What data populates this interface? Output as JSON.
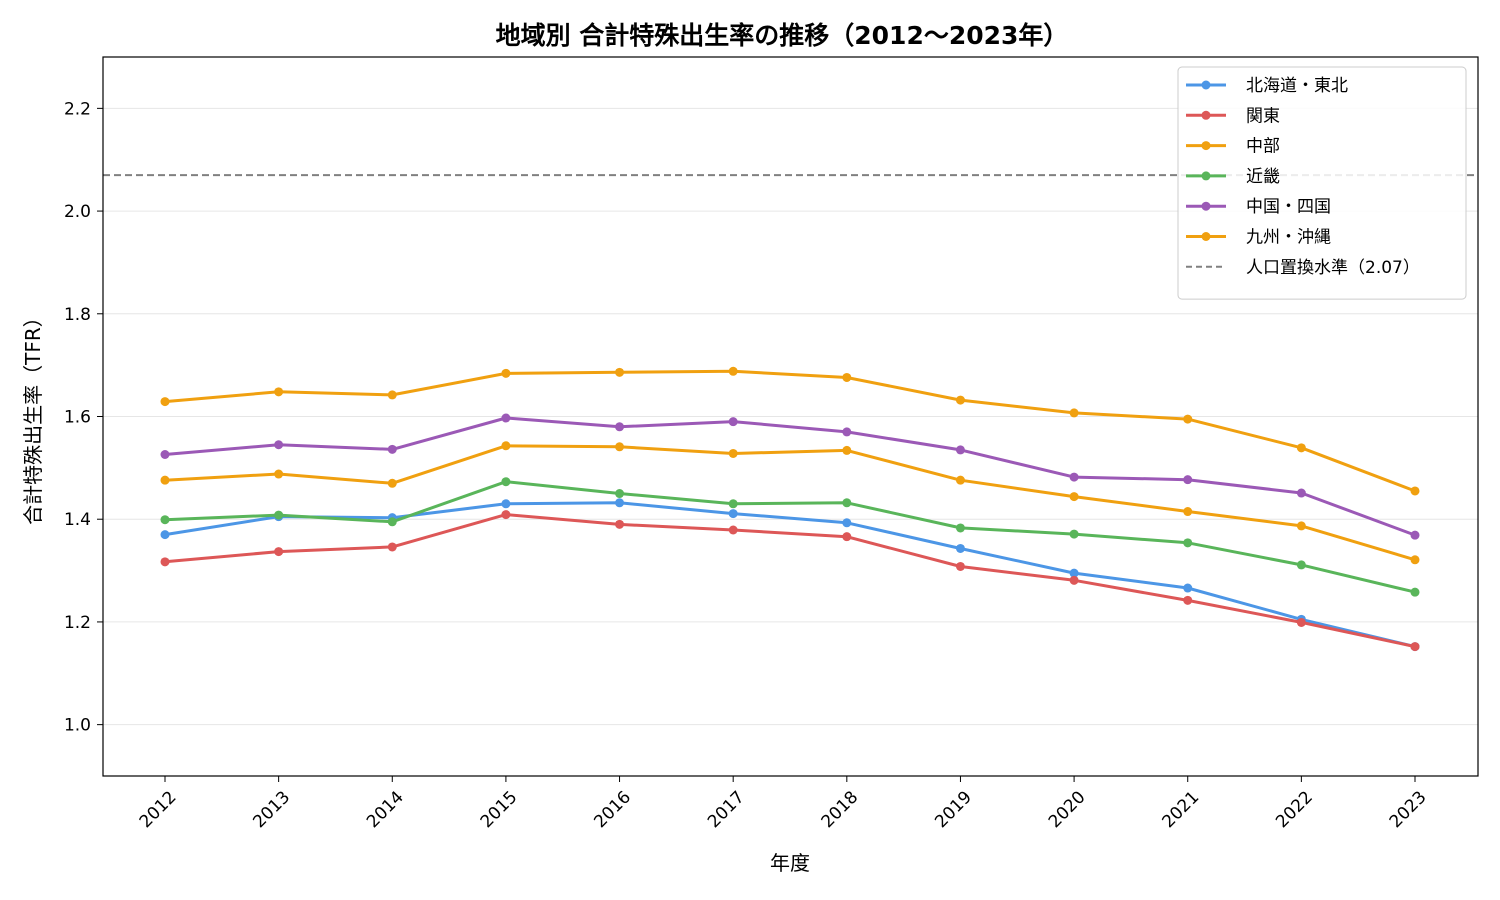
{
  "chart_data": {
    "type": "line",
    "title": "地域別 合計特殊出生率の推移（2012〜2023年）",
    "xlabel": "年度",
    "ylabel": "合計特殊出生率（TFR）",
    "ylim": [
      0.9,
      2.3
    ],
    "yticks": [
      "1.0",
      "1.2",
      "1.4",
      "1.6",
      "1.8",
      "2.0",
      "2.2"
    ],
    "x": [
      "2012",
      "2013",
      "2014",
      "2015",
      "2016",
      "2017",
      "2018",
      "2019",
      "2020",
      "2021",
      "2022",
      "2023"
    ],
    "grid": "horizontal",
    "legend_position": "top-right",
    "series": [
      {
        "name": "北海道・東北",
        "color": "#4c96e6",
        "values": [
          1.37,
          1.405,
          1.403,
          1.43,
          1.432,
          1.411,
          1.393,
          1.343,
          1.295,
          1.266,
          1.205,
          1.152
        ]
      },
      {
        "name": "関東",
        "color": "#dd5757",
        "values": [
          1.317,
          1.337,
          1.346,
          1.409,
          1.39,
          1.379,
          1.366,
          1.308,
          1.281,
          1.242,
          1.199,
          1.152
        ]
      },
      {
        "name": "中部",
        "color": "#f0a010",
        "values": [
          1.476,
          1.488,
          1.47,
          1.543,
          1.541,
          1.528,
          1.534,
          1.476,
          1.444,
          1.415,
          1.387,
          1.321
        ]
      },
      {
        "name": "近畿",
        "color": "#59b55a",
        "values": [
          1.399,
          1.408,
          1.395,
          1.473,
          1.45,
          1.43,
          1.432,
          1.383,
          1.371,
          1.354,
          1.311,
          1.258
        ]
      },
      {
        "name": "中国・四国",
        "color": "#9b59b6",
        "values": [
          1.526,
          1.545,
          1.536,
          1.597,
          1.58,
          1.59,
          1.57,
          1.535,
          1.482,
          1.477,
          1.451,
          1.369
        ]
      },
      {
        "name": "九州・沖縄",
        "color": "#f0a010",
        "values": [
          1.629,
          1.648,
          1.642,
          1.684,
          1.686,
          1.688,
          1.676,
          1.632,
          1.607,
          1.595,
          1.539,
          1.455
        ]
      }
    ],
    "reference_line": {
      "name": "人口置換水準（2.07）",
      "value": 2.07,
      "color": "#808080"
    }
  }
}
